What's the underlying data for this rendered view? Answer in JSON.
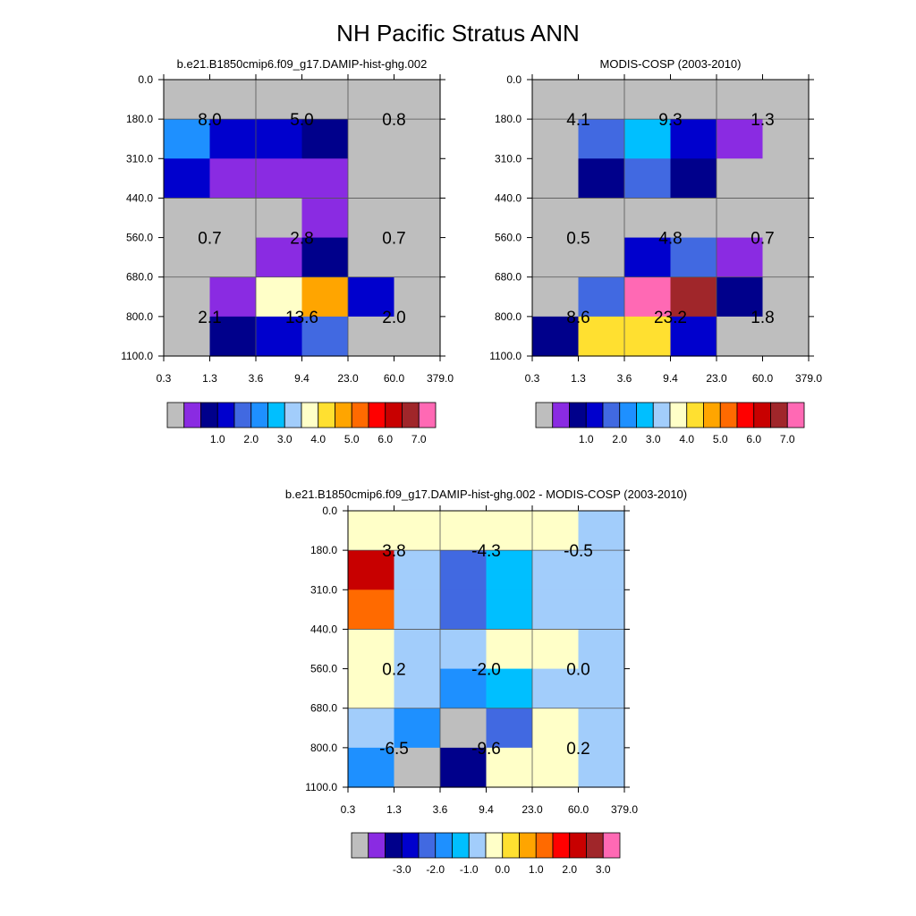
{
  "title": "NH Pacific Stratus ANN",
  "x_ticks": [
    "0.3",
    "1.3",
    "3.6",
    "9.4",
    "23.0",
    "60.0",
    "379.0"
  ],
  "y_ticks": [
    "0.0",
    "180.0",
    "310.0",
    "440.0",
    "560.0",
    "680.0",
    "800.0",
    "1100.0"
  ],
  "palette": {
    "missing": "#bebebe",
    "colors": [
      "#bebebe",
      "#8a2be2",
      "#00008b",
      "#0000cd",
      "#4169e1",
      "#1e90ff",
      "#00bfff",
      "#a2cdfb",
      "#ffffc8",
      "#ffe030",
      "#ffa500",
      "#ff6a00",
      "#ff0000",
      "#c80000",
      "#a0262a",
      "#ff69b4"
    ]
  },
  "chart_data": [
    {
      "type": "heatmap",
      "title": "b.e21.B1850cmip6.f09_g17.DAMIP-hist-ghg.002",
      "xlabel": "",
      "ylabel": "",
      "rows": [
        [
          0,
          0,
          0,
          0,
          0,
          0
        ],
        [
          5,
          3,
          3,
          2,
          0,
          0
        ],
        [
          3,
          1,
          1,
          1,
          0,
          0
        ],
        [
          0,
          0,
          0,
          1,
          0,
          0
        ],
        [
          0,
          0,
          1,
          2,
          0,
          0
        ],
        [
          0,
          1,
          8,
          10,
          3,
          0
        ],
        [
          0,
          2,
          3,
          4,
          0,
          0
        ]
      ],
      "labels": [
        {
          "value": "8.0",
          "col": 1,
          "row": 1
        },
        {
          "value": "5.0",
          "col": 3,
          "row": 1
        },
        {
          "value": "0.8",
          "col": 5,
          "row": 1
        },
        {
          "value": "0.7",
          "col": 1,
          "row": 4
        },
        {
          "value": "2.8",
          "col": 3,
          "row": 4
        },
        {
          "value": "0.7",
          "col": 5,
          "row": 4
        },
        {
          "value": "2.1",
          "col": 1,
          "row": 6
        },
        {
          "value": "13.6",
          "col": 3,
          "row": 6
        },
        {
          "value": "2.0",
          "col": 5,
          "row": 6
        }
      ],
      "colorbar": [
        "1.0",
        "2.0",
        "3.0",
        "4.0",
        "5.0",
        "6.0",
        "7.0"
      ]
    },
    {
      "type": "heatmap",
      "title": "MODIS-COSP (2003-2010)",
      "xlabel": "",
      "ylabel": "",
      "rows": [
        [
          0,
          0,
          0,
          0,
          0,
          0
        ],
        [
          0,
          4,
          6,
          3,
          1,
          0
        ],
        [
          0,
          2,
          4,
          2,
          0,
          0
        ],
        [
          0,
          0,
          0,
          0,
          0,
          0
        ],
        [
          0,
          0,
          3,
          4,
          1,
          0
        ],
        [
          0,
          4,
          15,
          14,
          2,
          0
        ],
        [
          2,
          9,
          9,
          3,
          0,
          0
        ]
      ],
      "labels": [
        {
          "value": "4.1",
          "col": 1,
          "row": 1
        },
        {
          "value": "9.3",
          "col": 3,
          "row": 1
        },
        {
          "value": "1.3",
          "col": 5,
          "row": 1
        },
        {
          "value": "0.5",
          "col": 1,
          "row": 4
        },
        {
          "value": "4.8",
          "col": 3,
          "row": 4
        },
        {
          "value": "0.7",
          "col": 5,
          "row": 4
        },
        {
          "value": "8.6",
          "col": 1,
          "row": 6
        },
        {
          "value": "23.2",
          "col": 3,
          "row": 6
        },
        {
          "value": "1.8",
          "col": 5,
          "row": 6
        }
      ],
      "colorbar": [
        "1.0",
        "2.0",
        "3.0",
        "4.0",
        "5.0",
        "6.0",
        "7.0"
      ]
    },
    {
      "type": "heatmap",
      "title": "b.e21.B1850cmip6.f09_g17.DAMIP-hist-ghg.002 - MODIS-COSP (2003-2010)",
      "xlabel": "",
      "ylabel": "",
      "rows": [
        [
          8,
          8,
          8,
          8,
          8,
          7
        ],
        [
          13,
          7,
          4,
          6,
          7,
          7
        ],
        [
          11,
          7,
          4,
          6,
          7,
          7
        ],
        [
          8,
          7,
          7,
          8,
          8,
          7
        ],
        [
          8,
          7,
          5,
          6,
          7,
          7
        ],
        [
          7,
          5,
          0,
          4,
          8,
          7
        ],
        [
          5,
          0,
          2,
          8,
          8,
          7
        ]
      ],
      "labels": [
        {
          "value": "3.8",
          "col": 1,
          "row": 1
        },
        {
          "value": "-4.3",
          "col": 3,
          "row": 1
        },
        {
          "value": "-0.5",
          "col": 5,
          "row": 1
        },
        {
          "value": "0.2",
          "col": 1,
          "row": 4
        },
        {
          "value": "-2.0",
          "col": 3,
          "row": 4
        },
        {
          "value": "0.0",
          "col": 5,
          "row": 4
        },
        {
          "value": "-6.5",
          "col": 1,
          "row": 6
        },
        {
          "value": "-9.6",
          "col": 3,
          "row": 6
        },
        {
          "value": "0.2",
          "col": 5,
          "row": 6
        }
      ],
      "colorbar": [
        "-3.0",
        "-2.0",
        "-1.0",
        "0.0",
        "1.0",
        "2.0",
        "3.0"
      ]
    }
  ]
}
